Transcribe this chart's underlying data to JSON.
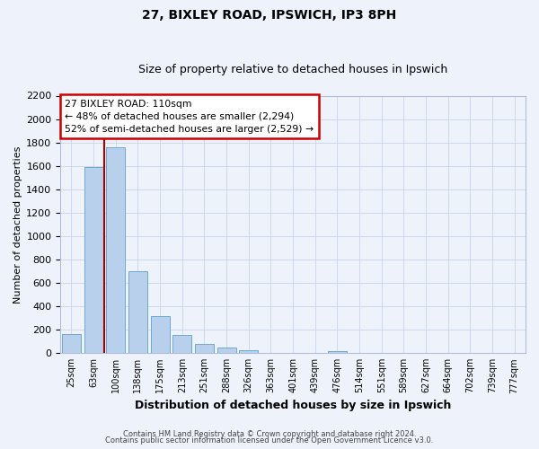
{
  "title": "27, BIXLEY ROAD, IPSWICH, IP3 8PH",
  "subtitle": "Size of property relative to detached houses in Ipswich",
  "xlabel": "Distribution of detached houses by size in Ipswich",
  "ylabel": "Number of detached properties",
  "bar_labels": [
    "25sqm",
    "63sqm",
    "100sqm",
    "138sqm",
    "175sqm",
    "213sqm",
    "251sqm",
    "288sqm",
    "326sqm",
    "363sqm",
    "401sqm",
    "439sqm",
    "476sqm",
    "514sqm",
    "551sqm",
    "589sqm",
    "627sqm",
    "664sqm",
    "702sqm",
    "739sqm",
    "777sqm"
  ],
  "bar_values": [
    160,
    1590,
    1760,
    700,
    315,
    155,
    80,
    50,
    25,
    0,
    0,
    0,
    20,
    0,
    0,
    0,
    0,
    0,
    0,
    0,
    0
  ],
  "bar_color": "#b8d0ec",
  "bar_edge_color": "#6aaad4",
  "vline_index": 2,
  "vline_color": "#aa0000",
  "annotation_line1": "27 BIXLEY ROAD: 110sqm",
  "annotation_line2": "← 48% of detached houses are smaller (2,294)",
  "annotation_line3": "52% of semi-detached houses are larger (2,529) →",
  "annotation_box_color": "#ffffff",
  "annotation_box_edge_color": "#cc0000",
  "ylim": [
    0,
    2200
  ],
  "yticks": [
    0,
    200,
    400,
    600,
    800,
    1000,
    1200,
    1400,
    1600,
    1800,
    2000,
    2200
  ],
  "footer1": "Contains HM Land Registry data © Crown copyright and database right 2024.",
  "footer2": "Contains public sector information licensed under the Open Government Licence v3.0.",
  "bg_color": "#eef2fb",
  "grid_color": "#c8d4ee",
  "title_fontsize": 10,
  "subtitle_fontsize": 9
}
